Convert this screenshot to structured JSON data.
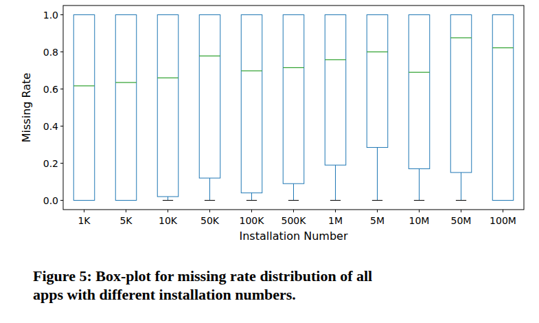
{
  "chart_data": {
    "type": "box",
    "caption": [
      "Figure 5: Box-plot for missing rate distribution of all",
      "apps with different installation numbers."
    ],
    "x_label": "Installation Number",
    "y_label": "Missing Rate",
    "categories": [
      "1K",
      "5K",
      "10K",
      "50K",
      "100K",
      "500K",
      "1M",
      "5M",
      "10M",
      "50M",
      "100M"
    ],
    "min": [
      0,
      0,
      0,
      0,
      0,
      0,
      0,
      0,
      0,
      0,
      0
    ],
    "q1": [
      0,
      0,
      0.02,
      0.12,
      0.04,
      0.09,
      0.19,
      0.285,
      0.17,
      0.15,
      0
    ],
    "median": [
      0.617,
      0.635,
      0.66,
      0.778,
      0.698,
      0.715,
      0.758,
      0.8,
      0.69,
      0.876,
      0.822
    ],
    "q3": [
      1,
      1,
      1,
      1,
      1,
      1,
      1,
      1,
      1,
      1,
      1
    ],
    "max": [
      1,
      1,
      1,
      1,
      1,
      1,
      1,
      1,
      1,
      1,
      1
    ],
    "color": "#1f77b4",
    "median_color": "#2ca02c",
    "ylim": [
      -0.05,
      1.05
    ],
    "yticks": [
      {
        "value": 0,
        "label": "0.0"
      },
      {
        "value": 0.2,
        "label": "0.2"
      },
      {
        "value": 0.4,
        "label": "0.4"
      },
      {
        "value": 0.6,
        "label": "0.6"
      },
      {
        "value": 0.8,
        "label": "0.8"
      },
      {
        "value": 1,
        "label": "1.0"
      }
    ],
    "grid": false
  }
}
